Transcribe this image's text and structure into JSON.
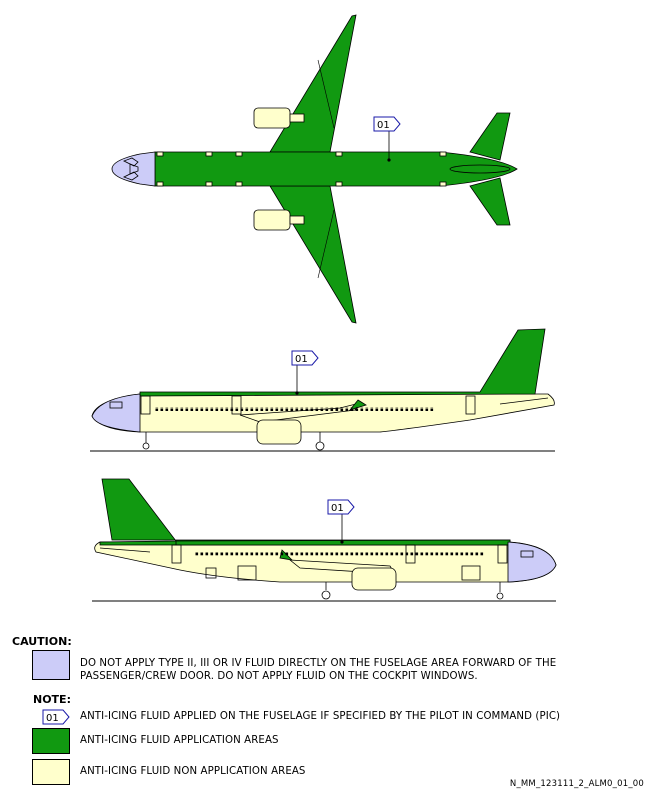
{
  "diagram": {
    "tag_label": "01"
  },
  "colors": {
    "application_area": "#119911",
    "non_application_area": "#ffffcc",
    "caution_area": "#ccccf8",
    "tag_stroke": "#1a1aa8",
    "outline": "#000000"
  },
  "legend": {
    "caution_title": "CAUTION:",
    "caution_text": "DO NOT APPLY TYPE II, III OR IV FLUID DIRECTLY ON THE FUSELAGE AREA FORWARD OF THE PASSENGER/CREW DOOR. DO NOT APPLY FLUID ON THE COCKPIT WINDOWS.",
    "note_title": "NOTE:",
    "note_tag": "01",
    "note_tag_text": "ANTI-ICING FLUID APPLIED ON THE FUSELAGE IF SPECIFIED BY THE PILOT IN COMMAND (PIC)",
    "application_text": "ANTI-ICING FLUID APPLICATION AREAS",
    "non_application_text": "ANTI-ICING FLUID NON APPLICATION AREAS"
  },
  "reference_id": "N_MM_123111_2_ALM0_01_00"
}
